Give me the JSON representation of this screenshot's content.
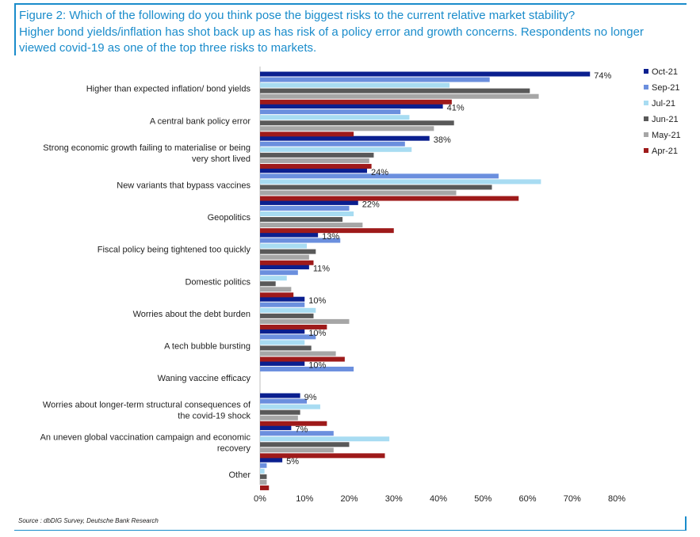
{
  "title_lines": [
    "Figure 2: Which of the following do you think pose the biggest risks to the current relative market stability?",
    "Higher bond yields/inflation has shot back up as has risk of a policy error and growth concerns. Respondents no longer",
    "viewed covid-19 as one of the top three risks to markets."
  ],
  "source": "Source : dbDIG Survey, Deutsche Bank Research",
  "chart_data": {
    "type": "bar",
    "orientation": "horizontal",
    "xlim": [
      0,
      80
    ],
    "x_ticks": [
      "0%",
      "10%",
      "20%",
      "30%",
      "40%",
      "50%",
      "60%",
      "70%",
      "80%"
    ],
    "legend_position": "right",
    "categories": [
      [
        "Higher than expected inflation/ bond yields"
      ],
      [
        "A central bank policy error"
      ],
      [
        "Strong economic growth failing to materialise or being",
        "very short lived"
      ],
      [
        "New variants that bypass vaccines"
      ],
      [
        "Geopolitics"
      ],
      [
        "Fiscal policy being tightened too quickly"
      ],
      [
        "Domestic politics"
      ],
      [
        "Worries about the debt burden"
      ],
      [
        "A tech bubble bursting"
      ],
      [
        "Waning vaccine efficacy"
      ],
      [
        "Worries about longer-term structural consequences of",
        "the covid-19 shock"
      ],
      [
        "An uneven global vaccination campaign and economic",
        "recovery"
      ],
      [
        "Other"
      ]
    ],
    "data_labels": [
      "74%",
      "41%",
      "38%",
      "24%",
      "22%",
      "13%",
      "11%",
      "10%",
      "10%",
      "10%",
      "9%",
      "7%",
      "5%"
    ],
    "series": [
      {
        "name": "Oct-21",
        "color": "#0a1f8f",
        "values": [
          74,
          41,
          38,
          24,
          22,
          13,
          11,
          10,
          10,
          10,
          9,
          7,
          5
        ]
      },
      {
        "name": "Sep-21",
        "color": "#6b8fde",
        "values": [
          51.5,
          31.5,
          32.5,
          53.5,
          20,
          18,
          8.5,
          10,
          12.5,
          21,
          10.5,
          16.5,
          1.5
        ]
      },
      {
        "name": "Jul-21",
        "color": "#a8dcf2",
        "values": [
          42.5,
          33.5,
          34,
          63,
          21,
          10.5,
          6,
          12.5,
          10,
          null,
          13.5,
          29,
          1
        ]
      },
      {
        "name": "Jun-21",
        "color": "#595959",
        "values": [
          60.5,
          43.5,
          25.5,
          52,
          18.5,
          12.5,
          3.5,
          12,
          11.5,
          null,
          9,
          20,
          1.5
        ]
      },
      {
        "name": "May-21",
        "color": "#a6a6a6",
        "values": [
          62.5,
          39,
          24.5,
          44,
          23,
          11,
          7,
          20,
          17,
          null,
          8.5,
          16.5,
          1.5
        ]
      },
      {
        "name": "Apr-21",
        "color": "#9e1a1a",
        "values": [
          43,
          21,
          25,
          58,
          30,
          12,
          7.5,
          15,
          19,
          null,
          15,
          28,
          2
        ]
      }
    ]
  }
}
